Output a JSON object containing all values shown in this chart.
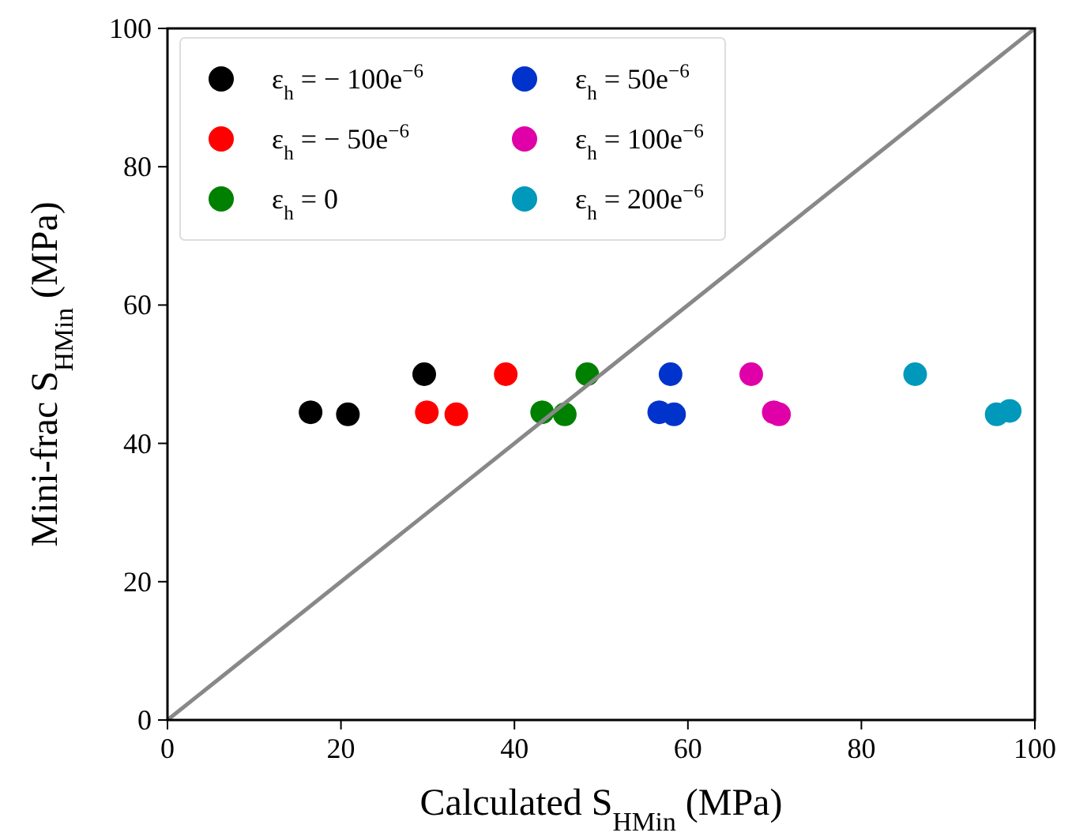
{
  "chart_data": {
    "type": "scatter",
    "xlabel": "Calculated S$_{HMin}$ (MPa)",
    "ylabel": "Mini-frac S$_{HMin}$ (MPa)",
    "xlim": [
      0,
      100
    ],
    "ylim": [
      0,
      100
    ],
    "xticks": [
      0,
      20,
      40,
      60,
      80,
      100
    ],
    "yticks": [
      0,
      20,
      40,
      60,
      80,
      100
    ],
    "grid": false,
    "legend": "top left",
    "marker": "circle",
    "series": [
      {
        "name": "ε$_{h}$ = − 100e$^{−6}$",
        "color": "#000000",
        "x": [
          16.5,
          20.8,
          29.6
        ],
        "values": [
          44.5,
          44.2,
          50
        ]
      },
      {
        "name": "ε$_{h}$ = − 50e$^{−6}$",
        "color": "#ff0000",
        "x": [
          29.9,
          33.3,
          39
        ],
        "values": [
          44.5,
          44.2,
          50
        ]
      },
      {
        "name": "ε$_{h}$ = 0",
        "color": "#008000",
        "x": [
          43.2,
          45.8,
          48.4
        ],
        "values": [
          44.5,
          44.2,
          50
        ]
      },
      {
        "name": "ε$_{h}$ = 50e$^{−6}$",
        "color": "#0033cc",
        "x": [
          56.7,
          58.4,
          58
        ],
        "values": [
          44.5,
          44.2,
          50
        ]
      },
      {
        "name": "ε$_{h}$ = 100e$^{−6}$",
        "color": "#e000a8",
        "x": [
          69.9,
          70.5,
          67.3
        ],
        "values": [
          44.5,
          44.2,
          50
        ]
      },
      {
        "name": "ε$_{h}$ = 200e$^{−6}$",
        "color": "#0099bb",
        "x": [
          97.1,
          95.6,
          86.2
        ],
        "values": [
          44.7,
          44.2,
          50
        ]
      },
      {
        "type": "line",
        "color": "#888888",
        "x": [
          0,
          100
        ],
        "values": [
          0,
          100
        ],
        "line_style": "solid",
        "marker": "none"
      }
    ]
  }
}
